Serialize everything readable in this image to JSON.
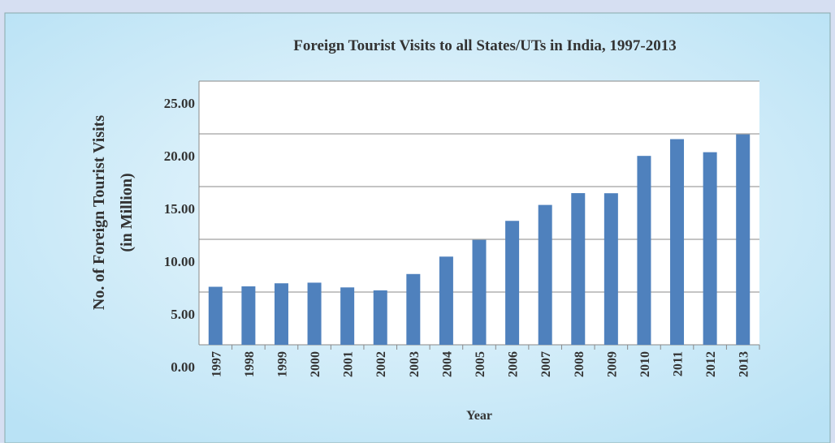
{
  "chart_data": {
    "type": "bar",
    "title": "Foreign Tourist Visits to all States/UTs in India, 1997-2013",
    "y_label": [
      "No. of Foreign Tourist Visits",
      "(in Million)"
    ],
    "x_label": "Year",
    "categories": [
      "1997",
      "1998",
      "1999",
      "2000",
      "2001",
      "2002",
      "2003",
      "2004",
      "2005",
      "2006",
      "2007",
      "2008",
      "2009",
      "2010",
      "2011",
      "2012",
      "2013"
    ],
    "values": [
      5.5,
      5.54,
      5.83,
      5.89,
      5.44,
      5.16,
      6.71,
      8.36,
      9.95,
      11.75,
      13.26,
      14.38,
      14.37,
      17.91,
      19.5,
      18.26,
      19.95
    ],
    "color": "#4f81bd",
    "ylim": [
      0,
      25
    ],
    "yticks": [
      {
        "value": 0,
        "label": "0.00"
      },
      {
        "value": 5,
        "label": "5.00"
      },
      {
        "value": 10,
        "label": "10.00"
      },
      {
        "value": 15,
        "label": "15.00"
      },
      {
        "value": 20,
        "label": "20.00"
      },
      {
        "value": 25,
        "label": "25.00"
      }
    ],
    "grid": true
  }
}
